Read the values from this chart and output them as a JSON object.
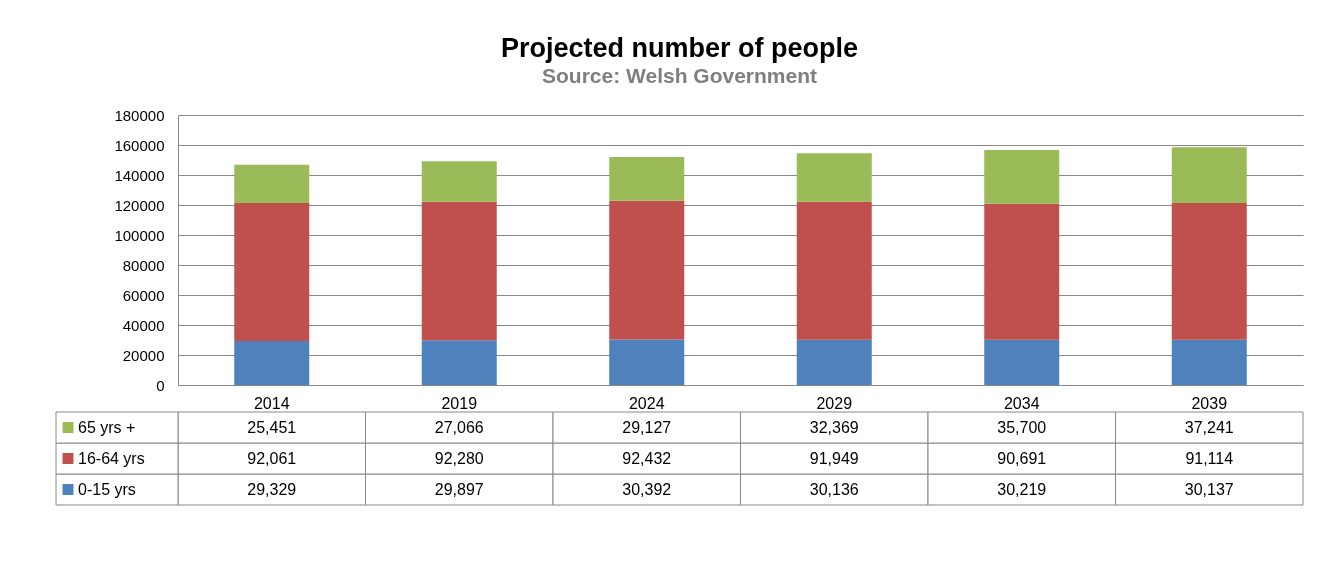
{
  "chart_data": {
    "type": "bar",
    "title": "Projected number of people",
    "subtitle": "Source: Welsh Government",
    "categories": [
      "2014",
      "2019",
      "2024",
      "2029",
      "2034",
      "2039"
    ],
    "series": [
      {
        "name": "0-15 yrs",
        "color": "#4f81bd",
        "values": [
          29329,
          29897,
          30392,
          30136,
          30219,
          30137
        ],
        "value_labels": [
          "29,329",
          "29,897",
          "30,392",
          "30,136",
          "30,219",
          "30,137"
        ]
      },
      {
        "name": "16-64 yrs",
        "color": "#c0504d",
        "values": [
          92061,
          92280,
          92432,
          91949,
          90691,
          91114
        ],
        "value_labels": [
          "92,061",
          "92,280",
          "92,432",
          "91,949",
          "90,691",
          "91,114"
        ]
      },
      {
        "name": "65 yrs +",
        "color": "#9bbb59",
        "values": [
          25451,
          27066,
          29127,
          32369,
          35700,
          37241
        ],
        "value_labels": [
          "25,451",
          "27,066",
          "29,127",
          "32,369",
          "35,700",
          "37,241"
        ]
      }
    ],
    "stacked": true,
    "ylim": [
      0,
      180000
    ],
    "yticks": [
      0,
      20000,
      40000,
      60000,
      80000,
      100000,
      120000,
      140000,
      160000,
      180000
    ],
    "grid": "y",
    "legend": "bottom"
  }
}
